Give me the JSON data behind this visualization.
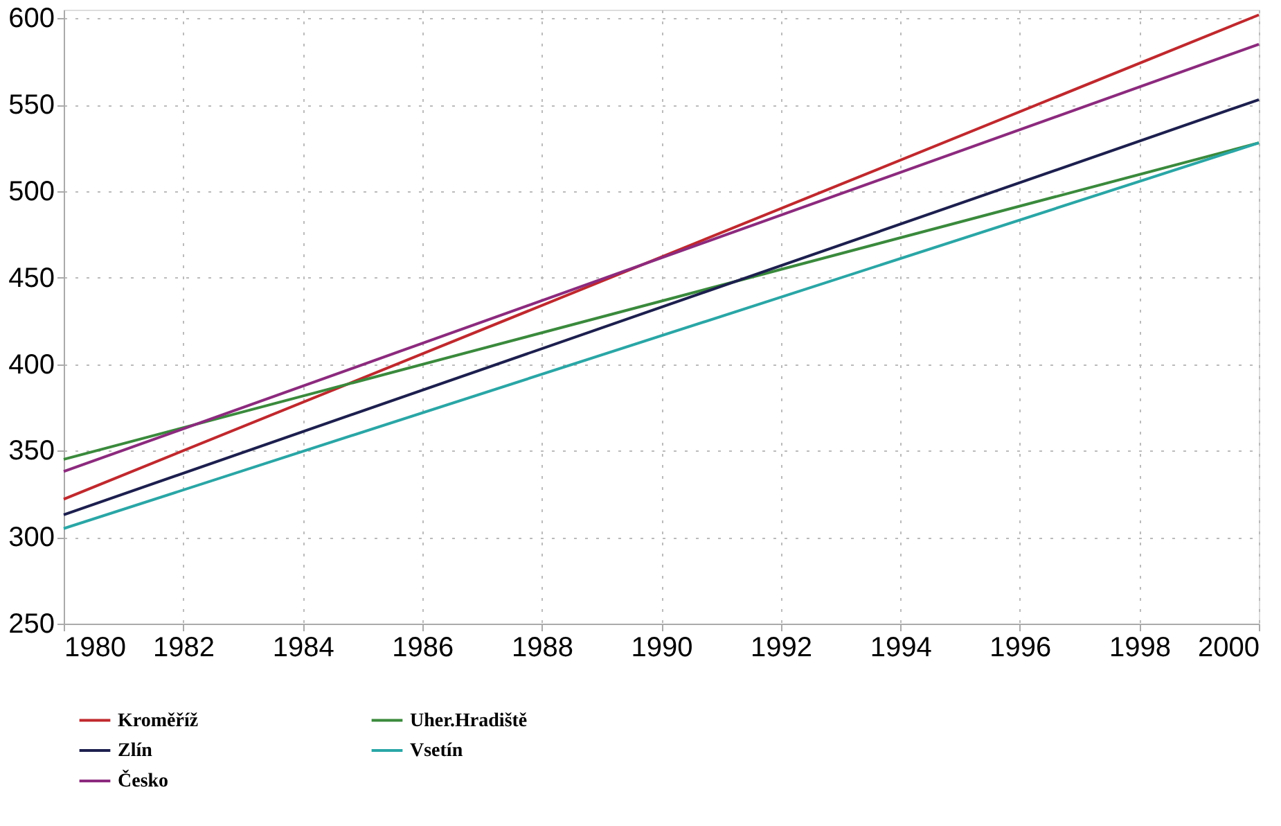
{
  "chart_data": {
    "type": "line",
    "x": [
      1980,
      2000
    ],
    "series": [
      {
        "name": "Kroměříž",
        "color": "#c0282d",
        "values": [
          322,
          602
        ]
      },
      {
        "name": "Uher.Hradiště",
        "color": "#3a8a3c",
        "values": [
          345,
          528
        ]
      },
      {
        "name": "Zlín",
        "color": "#1c1f4e",
        "values": [
          313,
          553
        ]
      },
      {
        "name": "Vsetín",
        "color": "#2aa6a6",
        "values": [
          305,
          528
        ]
      },
      {
        "name": "Česko",
        "color": "#8c2a7e",
        "values": [
          338,
          585
        ]
      }
    ],
    "xlim": [
      1980,
      2000
    ],
    "xticks": [
      1980,
      1982,
      1984,
      1986,
      1988,
      1990,
      1992,
      1994,
      1996,
      1998,
      2000
    ],
    "ylim": [
      250,
      605
    ],
    "yticks": [
      250,
      300,
      350,
      400,
      450,
      500,
      550,
      600
    ],
    "grid": true,
    "legend": "bottom",
    "line_style": "solid"
  }
}
